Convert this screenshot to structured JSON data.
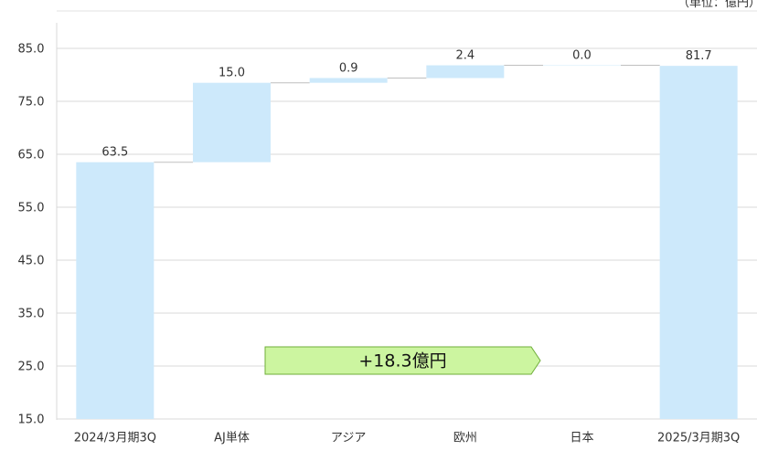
{
  "unit_note": "（単位：億円）",
  "chart_data": {
    "type": "bar",
    "subtype": "waterfall",
    "title": "",
    "xlabel": "",
    "ylabel": "",
    "categories": [
      "2024/3月期3Q",
      "AJ単体",
      "アジア",
      "欧州",
      "日本",
      "2025/3月期3Q"
    ],
    "bars": [
      {
        "start": 15.0,
        "end": 63.5,
        "label": "63.5",
        "kind": "total"
      },
      {
        "start": 63.5,
        "end": 78.5,
        "label": "15.0",
        "kind": "delta"
      },
      {
        "start": 78.5,
        "end": 79.4,
        "label": "0.9",
        "kind": "delta"
      },
      {
        "start": 79.4,
        "end": 81.8,
        "label": "2.4",
        "kind": "delta"
      },
      {
        "start": 81.8,
        "end": 81.8,
        "label": "0.0",
        "kind": "delta"
      },
      {
        "start": 15.0,
        "end": 81.7,
        "label": "81.7",
        "kind": "total"
      }
    ],
    "yticks": [
      15.0,
      25.0,
      35.0,
      45.0,
      55.0,
      65.0,
      75.0,
      85.0
    ],
    "ytick_labels": [
      "15.0",
      "25.0",
      "35.0",
      "45.0",
      "55.0",
      "65.0",
      "75.0",
      "85.0"
    ],
    "ylim": [
      15.0,
      85.0
    ],
    "grid": true,
    "legend": "none",
    "annotation": {
      "text": "+18.3億円"
    },
    "colors": {
      "bar": "#cde9fb",
      "grid": "#d9d9d9",
      "connector": "#bfbfbf",
      "callout_fill": "#ccf5a0",
      "callout_stroke": "#6fae3a"
    }
  }
}
